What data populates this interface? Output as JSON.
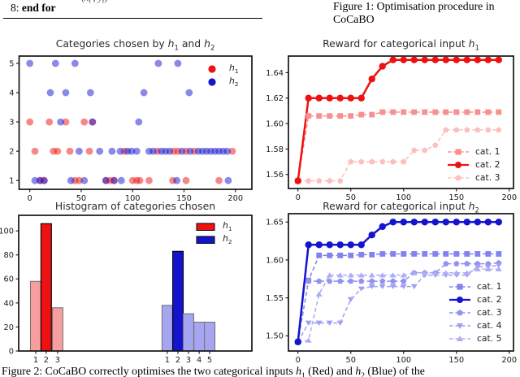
{
  "page": {
    "algo_num": "8:",
    "algo_text": "end for",
    "formula_fragment": "(x_t , y_t)",
    "figure1_caption": "Figure 1: Optimisation procedure in CoCaBO",
    "figure2_caption": "Figure 2: CoCaBO correctly optimises the two categorical inputs h_1 (Red) and h_2 (Blue) of the"
  },
  "colors": {
    "red_solid": "#ee1111",
    "red_mid": "#f98f8f",
    "red_light": "#fcbfbf",
    "blue_solid": "#1414cf",
    "blue_mid": "#8383ef",
    "blue_light3": "#9292f1",
    "blue_light4": "#9f9ff3",
    "blue_light5": "#adadf5",
    "hist_red_light": "#f89e9e",
    "hist_blue_light": "#a5a5f2",
    "edge_dark": "#000000",
    "edge_gray": "#777777"
  },
  "chart_data": [
    {
      "id": "categories-scatter",
      "type": "scatter",
      "title": "Categories chosen by h_1 and h_2",
      "xlim": [
        -10.4,
        216
      ],
      "ylim": [
        0.7,
        5.25
      ],
      "xticks": [
        {
          "v": 0,
          "l": "0"
        },
        {
          "v": 50,
          "l": "50"
        },
        {
          "v": 100,
          "l": "100"
        },
        {
          "v": 150,
          "l": "150"
        },
        {
          "v": 200,
          "l": "200"
        }
      ],
      "yticks": [
        {
          "v": 1,
          "l": "1"
        },
        {
          "v": 2,
          "l": "2"
        },
        {
          "v": 3,
          "l": "3"
        },
        {
          "v": 4,
          "l": "4"
        },
        {
          "v": 5,
          "l": "5"
        }
      ],
      "show_xticklabels": true,
      "series": [
        {
          "name": "h_1",
          "color": "#ee1111",
          "opacity": 0.5,
          "marker": "circle",
          "msize": 4.4,
          "points": [
            [
              10,
              1
            ],
            [
              14,
              1
            ],
            [
              44,
              1
            ],
            [
              48,
              1
            ],
            [
              74,
              1
            ],
            [
              78,
              1
            ],
            [
              82,
              1
            ],
            [
              100,
              1
            ],
            [
              104,
              1
            ],
            [
              107,
              1
            ],
            [
              116,
              1
            ],
            [
              139,
              1
            ],
            [
              152,
              1
            ],
            [
              184,
              1
            ],
            [
              5,
              2
            ],
            [
              23,
              2
            ],
            [
              27,
              2
            ],
            [
              39,
              2
            ],
            [
              58,
              2
            ],
            [
              92,
              2
            ],
            [
              124,
              2
            ],
            [
              140,
              2
            ],
            [
              144,
              2
            ],
            [
              152,
              2
            ],
            [
              160,
              2
            ],
            [
              197,
              2
            ],
            [
              0,
              3
            ],
            [
              19,
              3
            ],
            [
              35,
              3
            ],
            [
              53,
              3
            ],
            [
              61,
              3
            ]
          ]
        },
        {
          "name": "h_2",
          "color": "#1414cf",
          "opacity": 0.5,
          "marker": "circle",
          "msize": 4.4,
          "points": [
            [
              5,
              1
            ],
            [
              10,
              1
            ],
            [
              14,
              1
            ],
            [
              40,
              1
            ],
            [
              53,
              1
            ],
            [
              74,
              1
            ],
            [
              82,
              1
            ],
            [
              89,
              1
            ],
            [
              143,
              1
            ],
            [
              193,
              1
            ],
            [
              48,
              2
            ],
            [
              68,
              2
            ],
            [
              80,
              2
            ],
            [
              88,
              2
            ],
            [
              95,
              2
            ],
            [
              99,
              2
            ],
            [
              104,
              2
            ],
            [
              116,
              2
            ],
            [
              120,
              2
            ],
            [
              128,
              2
            ],
            [
              132,
              2
            ],
            [
              136,
              2
            ],
            [
              148,
              2
            ],
            [
              156,
              2
            ],
            [
              164,
              2
            ],
            [
              168,
              2
            ],
            [
              172,
              2
            ],
            [
              176,
              2
            ],
            [
              180,
              2
            ],
            [
              184,
              2
            ],
            [
              188,
              2
            ],
            [
              192,
              2
            ],
            [
              30,
              3
            ],
            [
              61,
              3
            ],
            [
              106,
              3
            ],
            [
              20,
              4
            ],
            [
              35,
              4
            ],
            [
              59,
              4
            ],
            [
              111,
              4
            ],
            [
              155,
              4
            ],
            [
              0,
              5
            ],
            [
              25,
              5
            ],
            [
              44,
              5
            ],
            [
              125,
              5
            ],
            [
              144,
              5
            ]
          ]
        }
      ],
      "legend": {
        "kind": "dot",
        "items": [
          {
            "label": "h_1",
            "color": "#ee1111"
          },
          {
            "label": "h_2",
            "color": "#1414cf"
          }
        ]
      }
    },
    {
      "id": "categories-histogram",
      "type": "bar",
      "title": "Histogram of categories chosen",
      "ylim": [
        0,
        113
      ],
      "yticks": [
        {
          "v": 0,
          "l": "0"
        },
        {
          "v": 20,
          "l": "20"
        },
        {
          "v": 40,
          "l": "40"
        },
        {
          "v": 60,
          "l": "60"
        },
        {
          "v": 80,
          "l": "80"
        },
        {
          "v": 100,
          "l": "100"
        }
      ],
      "bars": [
        {
          "cf": 0.073,
          "v": 58,
          "fill": "#f89e9e",
          "edge": "#777777",
          "label": "1",
          "group": "h_1"
        },
        {
          "cf": 0.118,
          "v": 106,
          "fill": "#ee1111",
          "edge": "#000000",
          "label": "2",
          "group": "h_1"
        },
        {
          "cf": 0.167,
          "v": 36,
          "fill": "#f89e9e",
          "edge": "#777777",
          "label": "3",
          "group": "h_1"
        },
        {
          "cf": 0.637,
          "v": 38,
          "fill": "#a5a5f2",
          "edge": "#777777",
          "label": "1",
          "group": "h_2"
        },
        {
          "cf": 0.683,
          "v": 83,
          "fill": "#1414cf",
          "edge": "#000000",
          "label": "2",
          "group": "h_2"
        },
        {
          "cf": 0.728,
          "v": 31,
          "fill": "#a5a5f2",
          "edge": "#777777",
          "label": "3",
          "group": "h_2"
        },
        {
          "cf": 0.774,
          "v": 24,
          "fill": "#a5a5f2",
          "edge": "#777777",
          "label": "4",
          "group": "h_2"
        },
        {
          "cf": 0.819,
          "v": 24,
          "fill": "#a5a5f2",
          "edge": "#777777",
          "label": "5",
          "group": "h_2"
        }
      ],
      "bar_width_f": 0.045,
      "legend": {
        "kind": "patch",
        "items": [
          {
            "label": "h_1",
            "color": "#ee1111"
          },
          {
            "label": "h_2",
            "color": "#1414cf"
          }
        ]
      }
    },
    {
      "id": "reward-h1",
      "type": "line",
      "title": "Reward for categorical input h_1",
      "xlim": [
        -9,
        204
      ],
      "ylim": [
        1.549,
        1.653
      ],
      "xticks": [
        {
          "v": 0,
          "l": "0"
        },
        {
          "v": 50,
          "l": "50"
        },
        {
          "v": 100,
          "l": "100"
        },
        {
          "v": 150,
          "l": "150"
        },
        {
          "v": 200,
          "l": "200"
        }
      ],
      "yticks": [
        {
          "v": 1.56,
          "l": "1.56"
        },
        {
          "v": 1.58,
          "l": "1.58"
        },
        {
          "v": 1.6,
          "l": "1.60"
        },
        {
          "v": 1.62,
          "l": "1.62"
        },
        {
          "v": 1.64,
          "l": "1.64"
        }
      ],
      "show_xticklabels": true,
      "x": [
        0,
        10,
        20,
        30,
        40,
        50,
        60,
        70,
        80,
        90,
        100,
        110,
        120,
        130,
        140,
        150,
        160,
        170,
        180,
        190
      ],
      "series": [
        {
          "name": "cat. 1",
          "color": "#f98f8f",
          "marker": "square",
          "linestyle": "dashed",
          "width": 1.5,
          "msize": 3.6,
          "y": [
            1.555,
            1.606,
            1.606,
            1.606,
            1.606,
            1.606,
            1.607,
            1.607,
            1.609,
            1.609,
            1.609,
            1.609,
            1.609,
            1.609,
            1.609,
            1.609,
            1.609,
            1.609,
            1.609,
            1.609
          ]
        },
        {
          "name": "cat. 3",
          "color": "#fcbfbf",
          "marker": "pentagon",
          "linestyle": "dashed",
          "width": 1.5,
          "msize": 3.8,
          "y": [
            1.555,
            1.555,
            1.555,
            1.555,
            1.555,
            1.57,
            1.57,
            1.57,
            1.57,
            1.57,
            1.57,
            1.579,
            1.579,
            1.583,
            1.595,
            1.595,
            1.595,
            1.595,
            1.595,
            1.595
          ]
        },
        {
          "name": "cat. 2",
          "color": "#ee1111",
          "marker": "circle",
          "linestyle": "solid",
          "width": 2.5,
          "msize": 4.2,
          "y": [
            1.555,
            1.62,
            1.62,
            1.62,
            1.62,
            1.62,
            1.62,
            1.635,
            1.645,
            1.65,
            1.65,
            1.65,
            1.65,
            1.65,
            1.65,
            1.65,
            1.65,
            1.65,
            1.65,
            1.65
          ]
        }
      ],
      "legend": {
        "kind": "line",
        "items": [
          {
            "label": "cat. 1",
            "color": "#f98f8f",
            "marker": "square",
            "linestyle": "dashed"
          },
          {
            "label": "cat. 2",
            "color": "#ee1111",
            "marker": "circle",
            "linestyle": "solid"
          },
          {
            "label": "cat. 3",
            "color": "#fcbfbf",
            "marker": "pentagon",
            "linestyle": "dashed"
          }
        ]
      }
    },
    {
      "id": "reward-h2",
      "type": "line",
      "title": "Reward for categorical input h_2",
      "xlim": [
        -9,
        204
      ],
      "ylim": [
        1.48,
        1.661
      ],
      "xticks": [
        {
          "v": 0,
          "l": "0"
        },
        {
          "v": 50,
          "l": "50"
        },
        {
          "v": 100,
          "l": "100"
        },
        {
          "v": 150,
          "l": "150"
        },
        {
          "v": 200,
          "l": "200"
        }
      ],
      "yticks": [
        {
          "v": 1.5,
          "l": "1.50"
        },
        {
          "v": 1.55,
          "l": "1.55"
        },
        {
          "v": 1.6,
          "l": "1.60"
        },
        {
          "v": 1.65,
          "l": "1.65"
        }
      ],
      "show_xticklabels": true,
      "x": [
        0,
        10,
        20,
        30,
        40,
        50,
        60,
        70,
        80,
        90,
        100,
        110,
        120,
        130,
        140,
        150,
        160,
        170,
        180,
        190
      ],
      "series": [
        {
          "name": "cat. 1",
          "color": "#8383ef",
          "marker": "square",
          "linestyle": "dashed",
          "width": 1.5,
          "msize": 3.6,
          "y": [
            1.492,
            1.573,
            1.606,
            1.606,
            1.606,
            1.606,
            1.607,
            1.607,
            1.608,
            1.608,
            1.608,
            1.608,
            1.608,
            1.608,
            1.608,
            1.608,
            1.608,
            1.608,
            1.608,
            1.608
          ]
        },
        {
          "name": "cat. 3",
          "color": "#9292f1",
          "marker": "pentagon",
          "linestyle": "dashed",
          "width": 1.5,
          "msize": 3.8,
          "y": [
            1.492,
            1.572,
            1.572,
            1.572,
            1.572,
            1.572,
            1.572,
            1.572,
            1.572,
            1.572,
            1.572,
            1.583,
            1.583,
            1.583,
            1.595,
            1.595,
            1.595,
            1.595,
            1.595,
            1.596
          ]
        },
        {
          "name": "cat. 4",
          "color": "#9f9ff3",
          "marker": "triangle_down",
          "linestyle": "dashed",
          "width": 1.5,
          "msize": 4.0,
          "y": [
            1.492,
            1.517,
            1.517,
            1.517,
            1.517,
            1.548,
            1.562,
            1.565,
            1.565,
            1.565,
            1.565,
            1.565,
            1.58,
            1.58,
            1.58,
            1.58,
            1.58,
            1.591,
            1.591,
            1.593
          ]
        },
        {
          "name": "cat. 5",
          "color": "#adadf5",
          "marker": "triangle_up",
          "linestyle": "dashed",
          "width": 1.5,
          "msize": 4.0,
          "y": [
            1.492,
            1.494,
            1.555,
            1.58,
            1.58,
            1.58,
            1.58,
            1.58,
            1.58,
            1.58,
            1.58,
            1.583,
            1.583,
            1.583,
            1.583,
            1.583,
            1.583,
            1.588,
            1.588,
            1.588
          ]
        },
        {
          "name": "cat. 2",
          "color": "#1414cf",
          "marker": "circle",
          "linestyle": "solid",
          "width": 2.5,
          "msize": 4.2,
          "y": [
            1.492,
            1.62,
            1.62,
            1.62,
            1.62,
            1.62,
            1.62,
            1.633,
            1.644,
            1.65,
            1.65,
            1.65,
            1.65,
            1.65,
            1.65,
            1.65,
            1.65,
            1.65,
            1.65,
            1.65
          ]
        }
      ],
      "legend": {
        "kind": "line",
        "items": [
          {
            "label": "cat. 1",
            "color": "#8383ef",
            "marker": "square",
            "linestyle": "dashed"
          },
          {
            "label": "cat. 2",
            "color": "#1414cf",
            "marker": "circle",
            "linestyle": "solid"
          },
          {
            "label": "cat. 3",
            "color": "#9292f1",
            "marker": "pentagon",
            "linestyle": "dashed"
          },
          {
            "label": "cat. 4",
            "color": "#9f9ff3",
            "marker": "triangle_down",
            "linestyle": "dashed"
          },
          {
            "label": "cat. 5",
            "color": "#adadf5",
            "marker": "triangle_up",
            "linestyle": "dashed"
          }
        ]
      }
    }
  ]
}
